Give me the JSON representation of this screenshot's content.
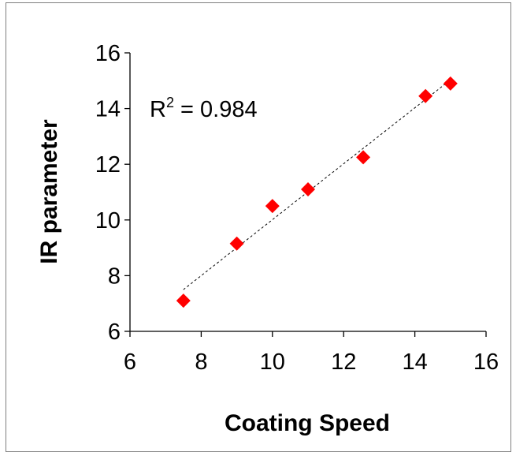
{
  "chart_data": {
    "type": "scatter",
    "xlabel": "Coating Speed",
    "ylabel": "IR parameter",
    "xlim": [
      6,
      16
    ],
    "ylim": [
      6,
      16
    ],
    "xticks": [
      6,
      8,
      10,
      12,
      14,
      16
    ],
    "yticks": [
      6,
      8,
      10,
      12,
      14,
      16
    ],
    "grid": false,
    "marker_color": "#ff0000",
    "trendline": {
      "type": "linear",
      "style": "dashed",
      "color": "#000000",
      "r_squared_label": "R",
      "r_squared_sup": "2",
      "r_squared_value": " = 0.984"
    },
    "series": [
      {
        "points": [
          {
            "x": 7.5,
            "y": 7.1
          },
          {
            "x": 9.0,
            "y": 9.15
          },
          {
            "x": 10.0,
            "y": 10.5
          },
          {
            "x": 11.0,
            "y": 11.1
          },
          {
            "x": 12.55,
            "y": 12.25
          },
          {
            "x": 14.3,
            "y": 14.45
          },
          {
            "x": 15.0,
            "y": 14.9
          }
        ]
      }
    ]
  }
}
